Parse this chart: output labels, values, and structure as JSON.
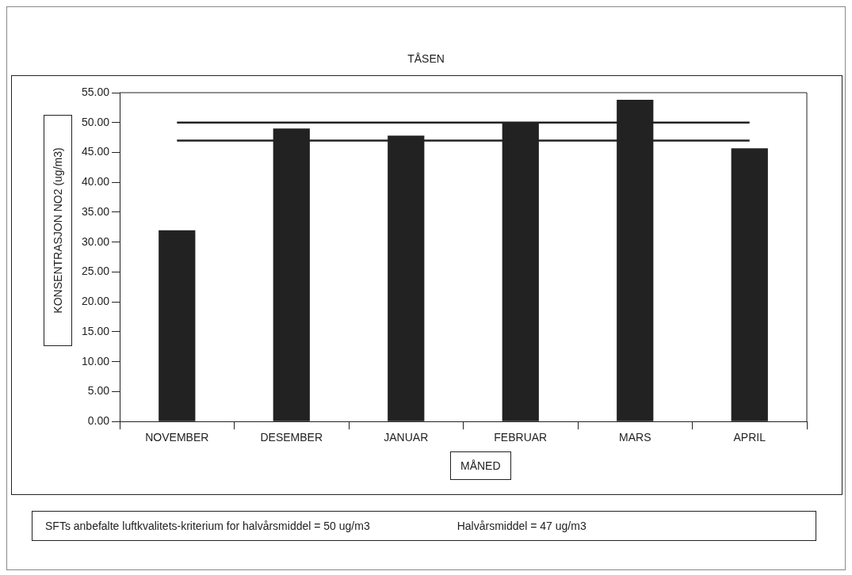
{
  "chart_data": {
    "type": "bar",
    "title": "TÅSEN",
    "xlabel": "MÅNED",
    "ylabel": "KONSENTRASJON NO2 (ug/m3)",
    "categories": [
      "NOVEMBER",
      "DESEMBER",
      "JANUAR",
      "FEBRUAR",
      "MARS",
      "APRIL"
    ],
    "values": [
      32,
      49,
      47.8,
      50,
      53.8,
      45.7
    ],
    "color": "#222222",
    "ylim": [
      0,
      55
    ],
    "yticks": [
      {
        "value": 0,
        "label": "0.00"
      },
      {
        "value": 5,
        "label": "5.00"
      },
      {
        "value": 10,
        "label": "10.00"
      },
      {
        "value": 15,
        "label": "15.00"
      },
      {
        "value": 20,
        "label": "20.00"
      },
      {
        "value": 25,
        "label": "25.00"
      },
      {
        "value": 30,
        "label": "30.00"
      },
      {
        "value": 35,
        "label": "35.00"
      },
      {
        "value": 40,
        "label": "40.00"
      },
      {
        "value": 45,
        "label": "45.00"
      },
      {
        "value": 50,
        "label": "50.00"
      },
      {
        "value": 55,
        "label": "55.00"
      }
    ],
    "ref_lines": [
      {
        "axis": "y",
        "value": 50,
        "color": "#222222"
      },
      {
        "axis": "y",
        "value": 47,
        "color": "#222222"
      }
    ],
    "annotations": [
      "SFTs anbefalte luftkvalitets-kriterium for halvårsmiddel = 50 ug/m3",
      "Halvårsmiddel = 47 ug/m3"
    ],
    "grid": false,
    "legend": false
  }
}
